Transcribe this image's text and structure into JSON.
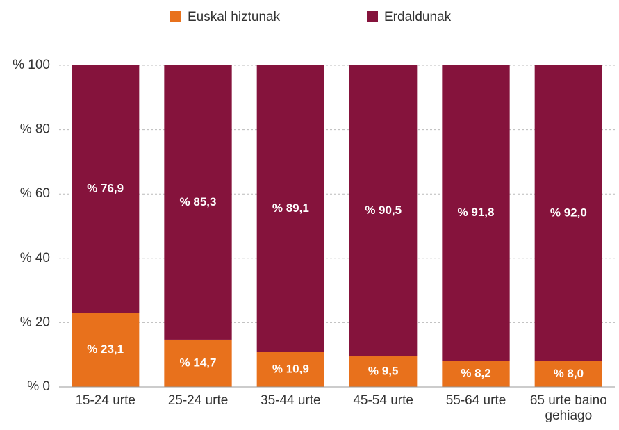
{
  "chart_data": {
    "type": "stacked_bar",
    "categories": [
      "15-24 urte",
      "25-24 urte",
      "35-44 urte",
      "45-54 urte",
      "55-64 urte",
      "65 urte baino gehiago"
    ],
    "series": [
      {
        "name": "Euskal hiztunak",
        "color": "#e8711c",
        "values": [
          23.1,
          14.7,
          10.9,
          9.5,
          8.2,
          8.0
        ],
        "value_labels": [
          "% 23,1",
          "% 14,7",
          "% 10,9",
          "% 9,5",
          "% 8,2",
          "% 8,0"
        ]
      },
      {
        "name": "Erdaldunak",
        "color": "#85133c",
        "values": [
          76.9,
          85.3,
          89.1,
          90.5,
          91.8,
          92.0
        ],
        "value_labels": [
          "% 76,9",
          "% 85,3",
          "% 89,1",
          "% 90,5",
          "% 91,8",
          "% 92,0"
        ]
      }
    ],
    "ylim": [
      0,
      100
    ],
    "yticks": [
      {
        "value": 0,
        "label": "% 0"
      },
      {
        "value": 20,
        "label": "% 20"
      },
      {
        "value": 40,
        "label": "% 40"
      },
      {
        "value": 60,
        "label": "% 60"
      },
      {
        "value": 80,
        "label": "% 80"
      },
      {
        "value": 100,
        "label": "% 100"
      }
    ],
    "grid": true,
    "legend": "top"
  }
}
